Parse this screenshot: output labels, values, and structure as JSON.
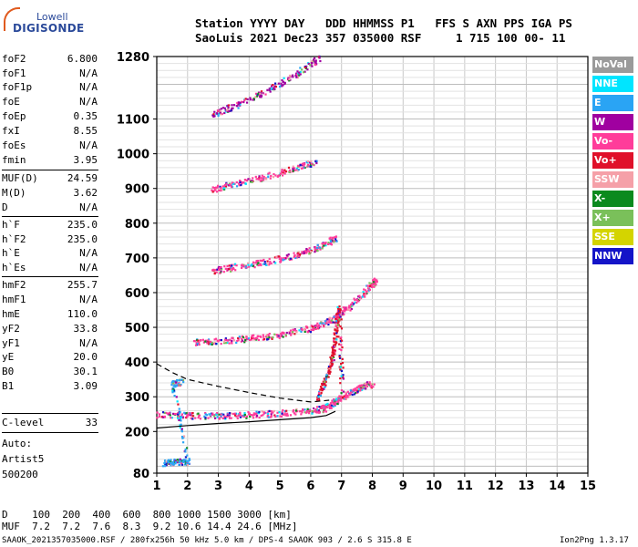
{
  "logo": {
    "top": "Lowell",
    "main": "DIGISONDE"
  },
  "header": {
    "line1": "Station YYYY DAY   DDD HHMMSS P1   FFS S AXN PPS IGA PS",
    "line2": "SaoLuis 2021 Dec23 357 035000 RSF     1 715 100 00- 11"
  },
  "params": [
    {
      "name": "foF2",
      "value": "6.800"
    },
    {
      "name": "foF1",
      "value": "N/A"
    },
    {
      "name": "foF1p",
      "value": "N/A"
    },
    {
      "name": "foE",
      "value": "N/A"
    },
    {
      "name": "foEp",
      "value": "0.35"
    },
    {
      "name": "fxI",
      "value": "8.55"
    },
    {
      "name": "foEs",
      "value": "N/A"
    },
    {
      "name": "fmin",
      "value": "3.95"
    },
    {
      "name": "MUF(D)",
      "value": "24.59"
    },
    {
      "name": "M(D)",
      "value": "3.62"
    },
    {
      "name": "D",
      "value": "N/A"
    },
    {
      "name": "h`F",
      "value": "235.0"
    },
    {
      "name": "h`F2",
      "value": "235.0"
    },
    {
      "name": "h`E",
      "value": "N/A"
    },
    {
      "name": "h`Es",
      "value": "N/A"
    },
    {
      "name": "hmF2",
      "value": "255.7"
    },
    {
      "name": "hmF1",
      "value": "N/A"
    },
    {
      "name": "hmE",
      "value": "110.0"
    },
    {
      "name": "yF2",
      "value": "33.8"
    },
    {
      "name": "yF1",
      "value": "N/A"
    },
    {
      "name": "yE",
      "value": "20.0"
    },
    {
      "name": "B0",
      "value": "30.1"
    },
    {
      "name": "B1",
      "value": "3.09"
    },
    {
      "name": "C-level",
      "value": "33"
    }
  ],
  "auto": {
    "label": "Auto:",
    "software": "Artist5",
    "version": "500200"
  },
  "legend": [
    {
      "label": "NoVal",
      "color": "#9a9a9a"
    },
    {
      "label": "NNE",
      "color": "#00e5ff"
    },
    {
      "label": "E",
      "color": "#2aa4f4"
    },
    {
      "label": "W",
      "color": "#a000a0"
    },
    {
      "label": "Vo-",
      "color": "#ff3c9a"
    },
    {
      "label": "Vo+",
      "color": "#e0102a"
    },
    {
      "label": "SSW",
      "color": "#f5a0a8"
    },
    {
      "label": "X-",
      "color": "#0b8a1e"
    },
    {
      "label": "X+",
      "color": "#7ac05a"
    },
    {
      "label": "SSE",
      "color": "#d4d400"
    },
    {
      "label": "NNW",
      "color": "#1414c8"
    }
  ],
  "bottom": {
    "d_row": "D    100  200  400  600  800 1000 1500 3000 [km]",
    "muf_row": "MUF  7.2  7.2  7.6  8.3  9.2 10.6 14.4 24.6 [MHz]",
    "footer_left": "SAAOK_2021357035000.RSF / 280fx256h 50 kHz 5.0 km / DPS-4 SAAOK 903 / 2.6 S 315.8 E",
    "footer_right": "Ion2Png 1.3.17"
  },
  "chart_data": {
    "type": "scatter",
    "title": "",
    "xlabel": "",
    "ylabel": "",
    "xlim": [
      1,
      15
    ],
    "ylim": [
      80,
      1280
    ],
    "x_ticks": [
      "1",
      "2",
      "3",
      "4",
      "5",
      "6",
      "7",
      "8",
      "9",
      "10",
      "11",
      "12",
      "13",
      "14",
      "15"
    ],
    "y_ticks": [
      "80",
      "200",
      "300",
      "400",
      "500",
      "600",
      "700",
      "800",
      "900",
      "1000",
      "1100",
      "1280"
    ],
    "y_tick_values": [
      80,
      200,
      300,
      400,
      500,
      600,
      700,
      800,
      900,
      1000,
      1100,
      1280
    ],
    "grid": true,
    "traces": [
      {
        "name": "F trace",
        "color_key": "Vo-",
        "points": [
          [
            1.0,
            250
          ],
          [
            2.0,
            248
          ],
          [
            3.0,
            247
          ],
          [
            4.0,
            250
          ],
          [
            5.0,
            255
          ],
          [
            6.0,
            262
          ],
          [
            6.5,
            270
          ],
          [
            6.8,
            290
          ],
          [
            7.2,
            310
          ],
          [
            7.6,
            330
          ],
          [
            8.0,
            340
          ]
        ]
      },
      {
        "name": "2F echo",
        "color_key": "Vo-",
        "points": [
          [
            2.2,
            460
          ],
          [
            3.0,
            462
          ],
          [
            4.0,
            470
          ],
          [
            5.0,
            480
          ],
          [
            6.0,
            500
          ],
          [
            6.6,
            520
          ],
          [
            7.2,
            560
          ],
          [
            7.8,
            610
          ],
          [
            8.1,
            640
          ]
        ]
      },
      {
        "name": "3F echo",
        "color_key": "Vo-",
        "points": [
          [
            2.8,
            665
          ],
          [
            3.5,
            675
          ],
          [
            4.5,
            690
          ],
          [
            5.5,
            710
          ],
          [
            6.2,
            730
          ],
          [
            6.8,
            760
          ]
        ]
      },
      {
        "name": "4F echo",
        "color_key": "Vo-",
        "points": [
          [
            2.8,
            900
          ],
          [
            3.5,
            915
          ],
          [
            4.5,
            935
          ],
          [
            5.5,
            960
          ],
          [
            6.2,
            980
          ]
        ]
      },
      {
        "name": "5F echo",
        "color_key": "W",
        "points": [
          [
            2.8,
            1115
          ],
          [
            3.5,
            1140
          ],
          [
            4.5,
            1180
          ],
          [
            5.5,
            1230
          ],
          [
            6.3,
            1280
          ]
        ]
      },
      {
        "name": "Spread F",
        "color_key": "Vo+",
        "points": [
          [
            6.2,
            300
          ],
          [
            6.5,
            360
          ],
          [
            6.7,
            420
          ],
          [
            6.8,
            500
          ],
          [
            6.9,
            560
          ],
          [
            7.0,
            300
          ]
        ]
      },
      {
        "name": "Low echoes",
        "color_key": "E",
        "points": [
          [
            1.2,
            110
          ],
          [
            1.6,
            115
          ],
          [
            2.0,
            112
          ],
          [
            1.5,
            340
          ],
          [
            1.8,
            345
          ]
        ]
      }
    ],
    "profile_curves": [
      {
        "name": "solid profile",
        "style": "solid",
        "points": [
          [
            1.0,
            210
          ],
          [
            2.0,
            217
          ],
          [
            3.0,
            223
          ],
          [
            4.0,
            228
          ],
          [
            5.0,
            234
          ],
          [
            6.0,
            240
          ],
          [
            6.5,
            246
          ],
          [
            6.8,
            258
          ]
        ]
      },
      {
        "name": "dashed profile",
        "style": "dashed",
        "points": [
          [
            1.0,
            395
          ],
          [
            1.5,
            370
          ],
          [
            2.0,
            350
          ],
          [
            3.0,
            330
          ],
          [
            4.0,
            312
          ],
          [
            5.0,
            296
          ],
          [
            6.0,
            285
          ],
          [
            6.6,
            290
          ]
        ]
      }
    ]
  }
}
